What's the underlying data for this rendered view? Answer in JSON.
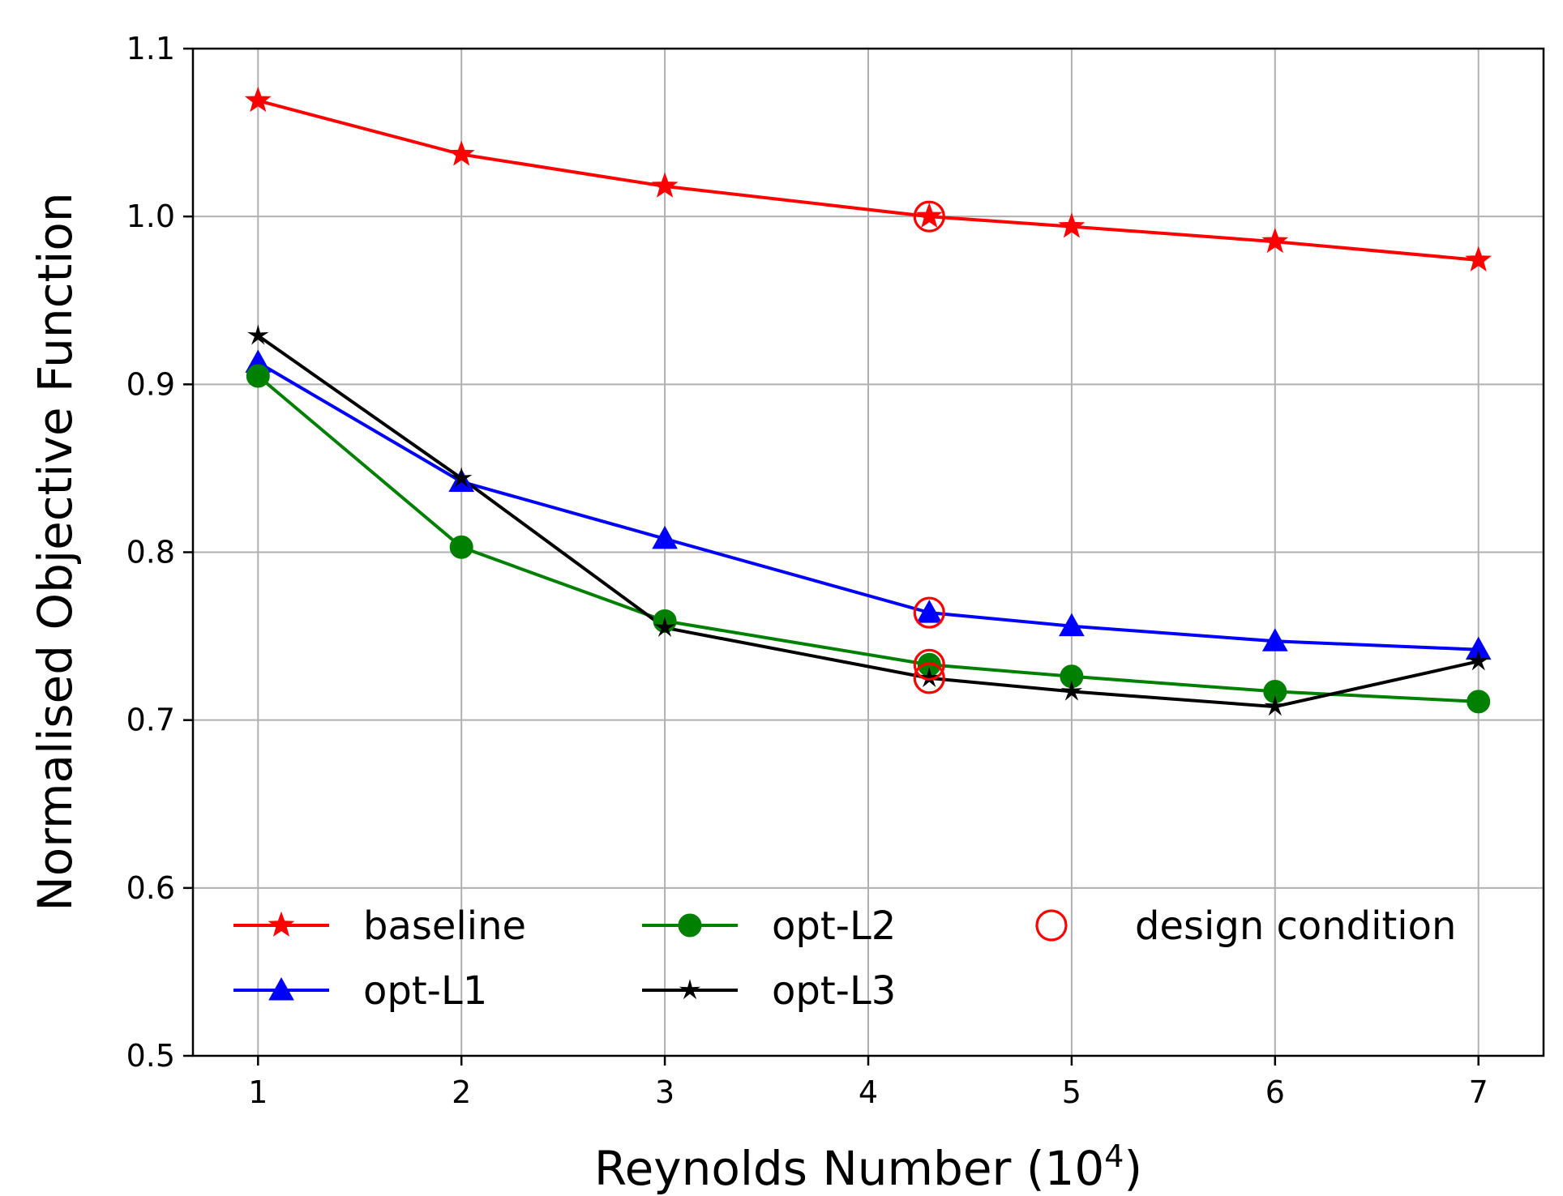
{
  "chart_data": {
    "type": "line",
    "title": "",
    "xlabel": "Reynolds Number",
    "xlabel_unit_base": "10",
    "xlabel_unit_exp": "4",
    "ylabel": "Normalised Objective Function",
    "xlim": [
      0.68,
      7.32
    ],
    "ylim": [
      0.5,
      1.1
    ],
    "xticks": [
      1,
      2,
      3,
      4,
      5,
      6,
      7
    ],
    "xtick_labels": [
      "1",
      "2",
      "3",
      "4",
      "5",
      "6",
      "7"
    ],
    "yticks": [
      0.5,
      0.6,
      0.7,
      0.8,
      0.9,
      1.0,
      1.1
    ],
    "ytick_labels": [
      "0.5",
      "0.6",
      "0.7",
      "0.8",
      "0.9",
      "1.0",
      "1.1"
    ],
    "grid": true,
    "legend_position": "lower-left",
    "series": [
      {
        "name": "baseline",
        "color": "#ff0000",
        "marker": "star",
        "x": [
          1,
          2,
          3,
          4.3,
          5,
          6,
          7
        ],
        "values": [
          1.069,
          1.037,
          1.018,
          1.0,
          0.994,
          0.985,
          0.974
        ]
      },
      {
        "name": "opt-L1",
        "color": "#0000ff",
        "marker": "triangle",
        "x": [
          1,
          2,
          3,
          4.3,
          5,
          6,
          7
        ],
        "values": [
          0.913,
          0.842,
          0.808,
          0.764,
          0.756,
          0.747,
          0.742
        ]
      },
      {
        "name": "opt-L2",
        "color": "#008000",
        "marker": "circle",
        "x": [
          1,
          2,
          3,
          4.3,
          5,
          6,
          7
        ],
        "values": [
          0.905,
          0.803,
          0.759,
          0.733,
          0.726,
          0.717,
          0.711
        ]
      },
      {
        "name": "opt-L3",
        "color": "#000000",
        "marker": "small-star",
        "x": [
          1,
          2,
          3,
          4.3,
          5,
          6,
          7
        ],
        "values": [
          0.929,
          0.844,
          0.755,
          0.725,
          0.717,
          0.708,
          0.735
        ]
      }
    ],
    "design_condition": {
      "name": "design condition",
      "color": "#ff0000",
      "marker": "open-circle",
      "x": [
        4.3,
        4.3,
        4.3,
        4.3
      ],
      "values": [
        1.0,
        0.764,
        0.733,
        0.725
      ]
    }
  }
}
